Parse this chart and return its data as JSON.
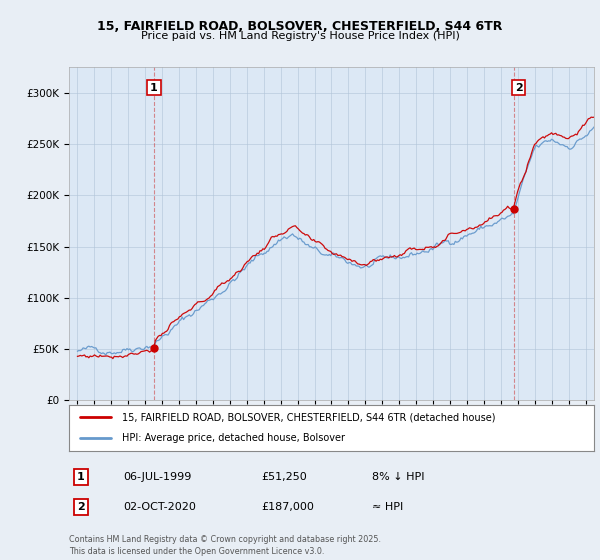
{
  "title_line1": "15, FAIRFIELD ROAD, BOLSOVER, CHESTERFIELD, S44 6TR",
  "title_line2": "Price paid vs. HM Land Registry's House Price Index (HPI)",
  "background_color": "#e8eef5",
  "plot_bg_color": "#dce8f5",
  "red_color": "#cc0000",
  "blue_color": "#6699cc",
  "annotation1_label": "1",
  "annotation2_label": "2",
  "legend_line1": "15, FAIRFIELD ROAD, BOLSOVER, CHESTERFIELD, S44 6TR (detached house)",
  "legend_line2": "HPI: Average price, detached house, Bolsover",
  "table_row1": [
    "1",
    "06-JUL-1999",
    "£51,250",
    "8% ↓ HPI"
  ],
  "table_row2": [
    "2",
    "02-OCT-2020",
    "£187,000",
    "≈ HPI"
  ],
  "footer": "Contains HM Land Registry data © Crown copyright and database right 2025.\nThis data is licensed under the Open Government Licence v3.0.",
  "ylim_min": 0,
  "ylim_max": 325000,
  "xmin": 1994.5,
  "xmax": 2025.5,
  "sale1_t": 1999.52,
  "sale1_price": 51250,
  "sale2_t": 2020.75,
  "sale2_price": 187000
}
